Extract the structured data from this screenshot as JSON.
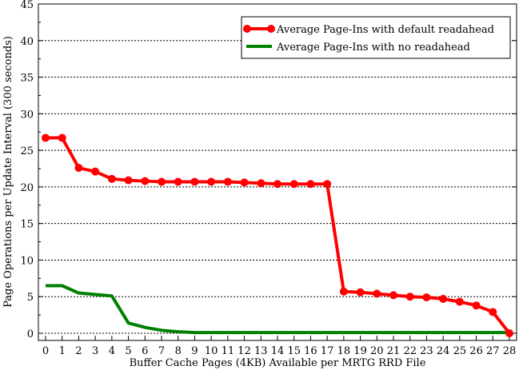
{
  "chart_data": {
    "type": "line",
    "title": "",
    "xlabel": "Buffer Cache Pages (4KB) Available per MRTG RRD File",
    "ylabel": "Page Operations per Update Interval (300 seconds)",
    "xlim": [
      0,
      28
    ],
    "ylim": [
      0,
      45
    ],
    "x": [
      0,
      1,
      2,
      3,
      4,
      5,
      6,
      7,
      8,
      9,
      10,
      11,
      12,
      13,
      14,
      15,
      16,
      17,
      18,
      19,
      20,
      21,
      22,
      23,
      24,
      25,
      26,
      27,
      28
    ],
    "yticks": [
      0,
      5,
      10,
      15,
      20,
      25,
      30,
      35,
      40,
      45
    ],
    "grid": true,
    "legend": "top-right",
    "series": [
      {
        "name": "Average Page-Ins with default readahead",
        "color": "#ff0000",
        "markers": true,
        "values": [
          26.7,
          26.7,
          22.6,
          22.1,
          21.1,
          20.9,
          20.8,
          20.7,
          20.7,
          20.7,
          20.7,
          20.7,
          20.6,
          20.5,
          20.4,
          20.4,
          20.4,
          20.4,
          5.7,
          5.6,
          5.4,
          5.2,
          5.0,
          4.9,
          4.7,
          4.3,
          3.8,
          2.9,
          0
        ]
      },
      {
        "name": "Average Page-Ins with no readahead",
        "color": "#008000",
        "markers": false,
        "values": [
          6.5,
          6.5,
          5.5,
          5.3,
          5.1,
          1.4,
          0.8,
          0.4,
          0.2,
          0.1,
          0.1,
          0.1,
          0.1,
          0.1,
          0.1,
          0.1,
          0.1,
          0.1,
          0.1,
          0.1,
          0.1,
          0.1,
          0.1,
          0.1,
          0.1,
          0.1,
          0.1,
          0.1,
          0.1
        ]
      }
    ]
  }
}
